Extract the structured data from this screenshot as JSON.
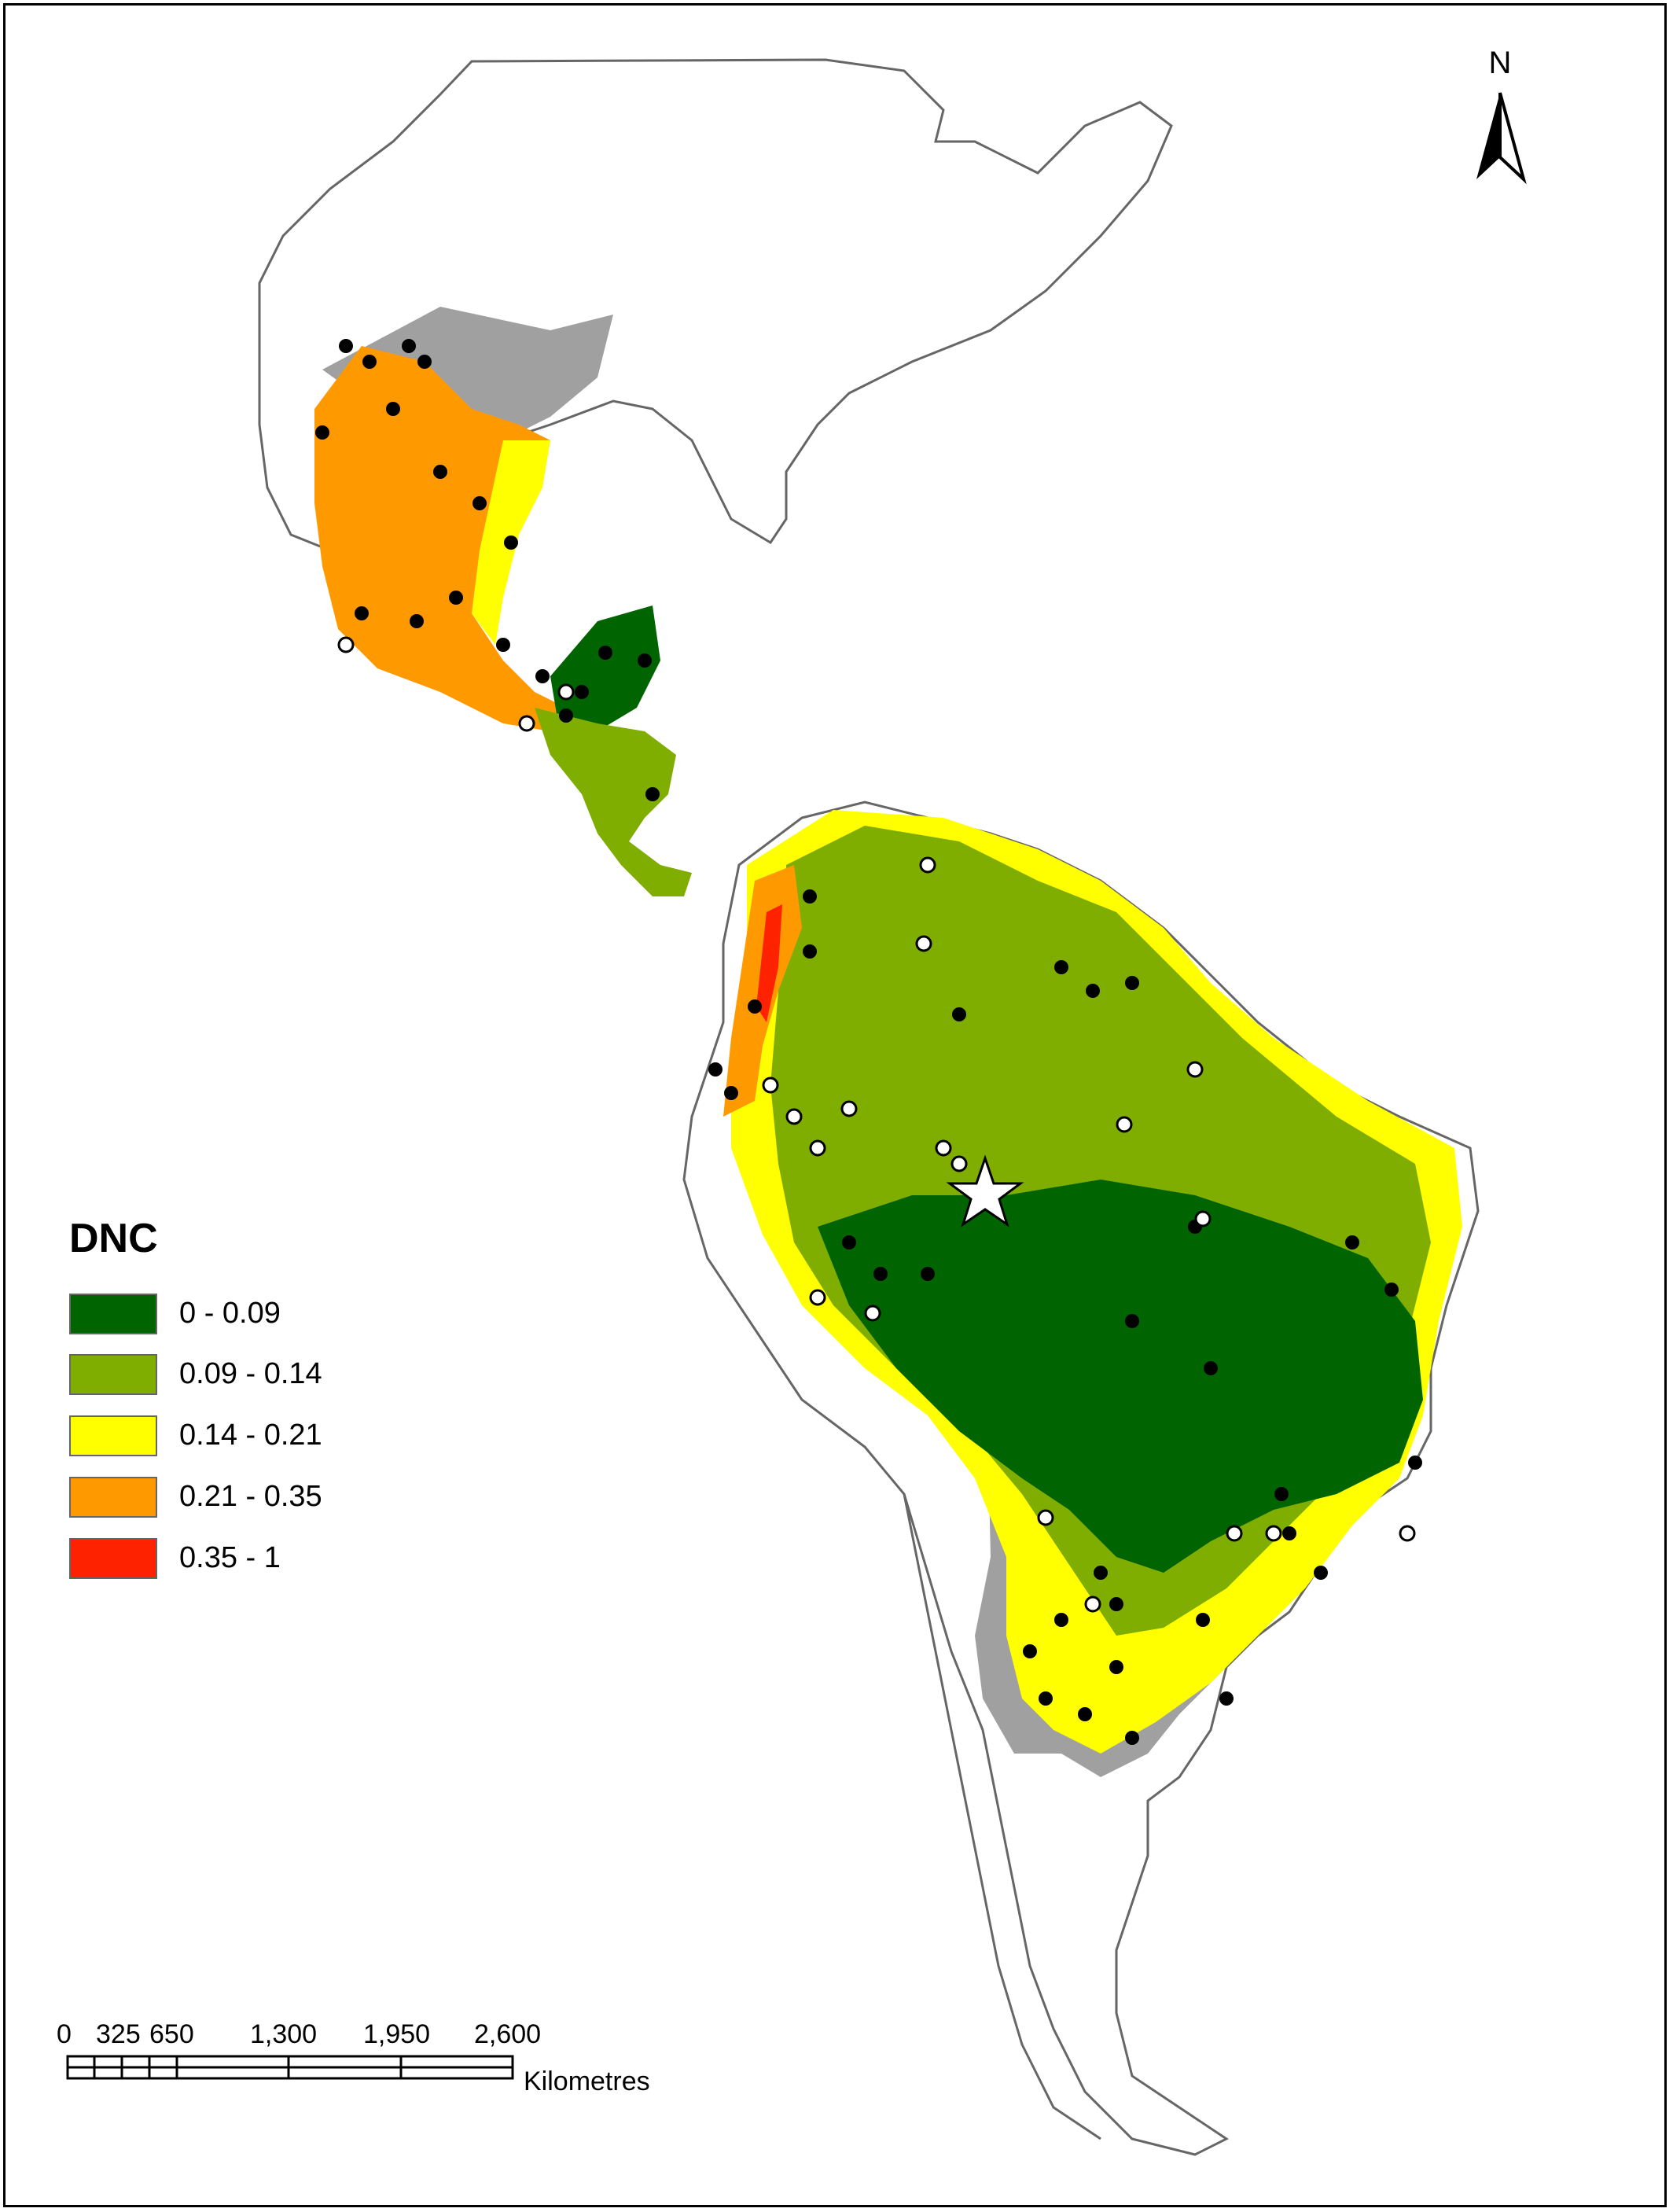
{
  "north": {
    "label": "N",
    "icon": "north-arrow-icon"
  },
  "legend": {
    "title": "DNC",
    "items": [
      {
        "label": "0 - 0.09",
        "color": "#006400"
      },
      {
        "label": "0.09 - 0.14",
        "color": "#7fad00"
      },
      {
        "label": "0.14 - 0.21",
        "color": "#ffff00"
      },
      {
        "label": "0.21 - 0.35",
        "color": "#ff9900"
      },
      {
        "label": "0.35 - 1",
        "color": "#ff2200"
      }
    ]
  },
  "scalebar": {
    "ticks": [
      "0",
      "325",
      "650",
      "1,300",
      "1,950",
      "2,600"
    ],
    "unit": "Kilometres"
  },
  "colors": {
    "unsuitable": "#a0a0a0",
    "outline": "#666666",
    "occurrence_black": "#000000",
    "occurrence_white": "#ffffff"
  },
  "markers": {
    "star": "star-icon"
  }
}
